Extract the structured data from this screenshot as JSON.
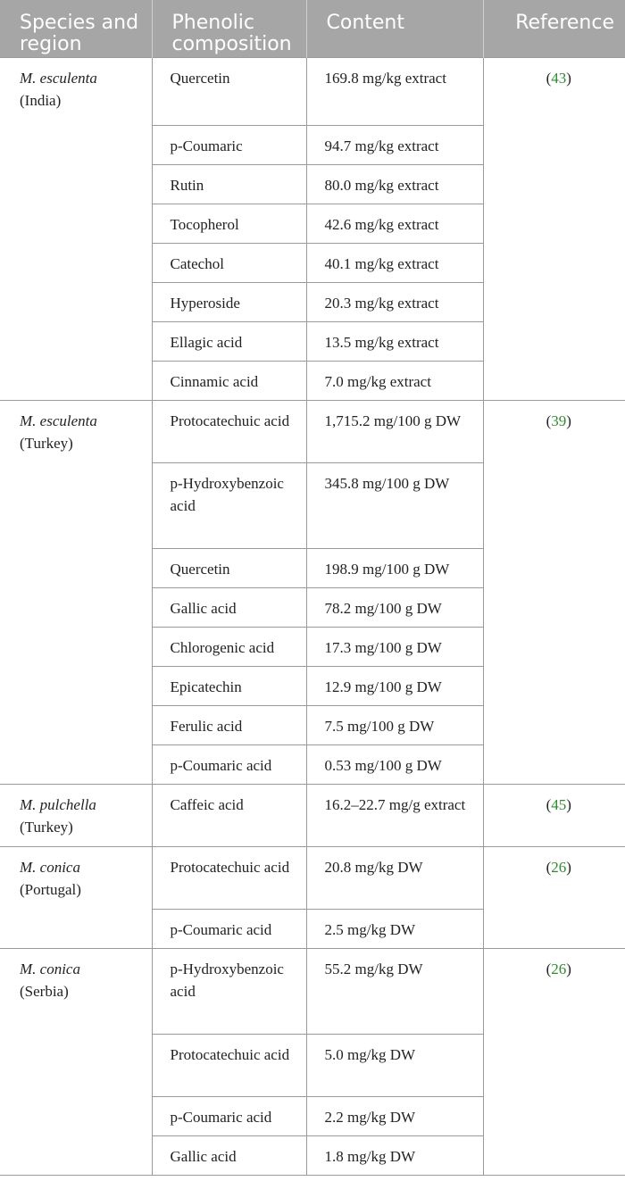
{
  "headers": [
    "Species and region",
    "Phenolic composition",
    "Content",
    "Reference"
  ],
  "groups": [
    {
      "species": "M. esculenta",
      "region": "(India)",
      "ref": "43",
      "rows": [
        {
          "compound": "Quercetin",
          "content": "169.8 mg/kg extract"
        },
        {
          "compound": "p-Coumaric",
          "content": "94.7 mg/kg extract"
        },
        {
          "compound": "Rutin",
          "content": "80.0 mg/kg extract"
        },
        {
          "compound": "Tocopherol",
          "content": "42.6 mg/kg extract"
        },
        {
          "compound": "Catechol",
          "content": "40.1 mg/kg extract"
        },
        {
          "compound": "Hyperoside",
          "content": "20.3 mg/kg extract"
        },
        {
          "compound": "Ellagic acid",
          "content": "13.5 mg/kg extract"
        },
        {
          "compound": "Cinnamic acid",
          "content": "7.0 mg/kg extract"
        }
      ]
    },
    {
      "species": "M. esculenta",
      "region": "(Turkey)",
      "ref": "39",
      "rows": [
        {
          "compound": "Protocatechuic acid",
          "content": "1,715.2 mg/100 g DW"
        },
        {
          "compound": "p-Hydroxybenzoic acid",
          "content": "345.8 mg/100 g DW"
        },
        {
          "compound": "Quercetin",
          "content": "198.9 mg/100 g DW"
        },
        {
          "compound": "Gallic acid",
          "content": "78.2 mg/100 g DW"
        },
        {
          "compound": "Chlorogenic acid",
          "content": "17.3 mg/100 g DW"
        },
        {
          "compound": "Epicatechin",
          "content": "12.9 mg/100 g DW"
        },
        {
          "compound": "Ferulic acid",
          "content": "7.5 mg/100 g DW"
        },
        {
          "compound": "p-Coumaric acid",
          "content": "0.53 mg/100 g DW"
        }
      ]
    },
    {
      "species": "M. pulchella",
      "region": "(Turkey)",
      "ref": "45",
      "rows": [
        {
          "compound": "Caffeic acid",
          "content": "16.2–22.7 mg/g extract"
        }
      ]
    },
    {
      "species": "M. conica",
      "region": "(Portugal)",
      "ref": "26",
      "rows": [
        {
          "compound": "Protocatechuic acid",
          "content": "20.8 mg/kg DW"
        },
        {
          "compound": "p-Coumaric acid",
          "content": "2.5 mg/kg DW"
        }
      ]
    },
    {
      "species": "M. conica",
      "region": "(Serbia)",
      "ref": "26",
      "rows": [
        {
          "compound": "p-Hydroxybenzoic acid",
          "content": "55.2 mg/kg DW"
        },
        {
          "compound": "Protocatechuic acid",
          "content": "5.0 mg/kg DW"
        },
        {
          "compound": "p-Coumaric acid",
          "content": "2.2 mg/kg DW"
        },
        {
          "compound": "Gallic acid",
          "content": "1.8 mg/kg DW"
        }
      ]
    }
  ]
}
